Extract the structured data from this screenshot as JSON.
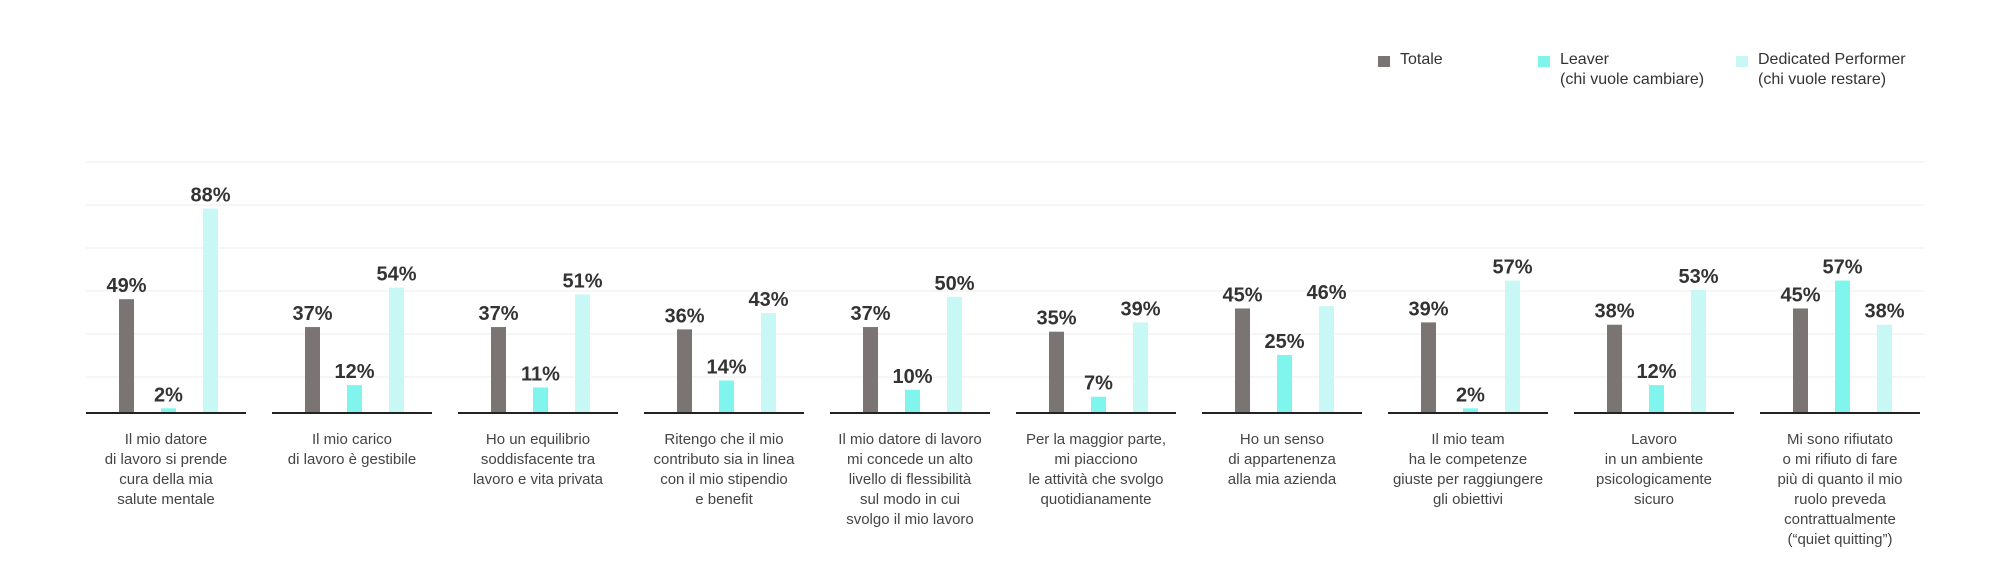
{
  "chart_data": {
    "type": "bar",
    "categories": [
      [
        "Il mio datore",
        "di lavoro si prende",
        "cura della mia",
        "salute mentale"
      ],
      [
        "Il mio carico",
        "di lavoro è gestibile"
      ],
      [
        "Ho un equilibrio",
        "soddisfacente tra",
        "lavoro e vita privata"
      ],
      [
        "Ritengo che il mio",
        "contributo sia in linea",
        "con il mio stipendio",
        "e benefit"
      ],
      [
        "Il mio datore di lavoro",
        "mi concede un alto",
        "livello di flessibilità",
        "sul modo in cui",
        "svolgo il mio lavoro"
      ],
      [
        "Per la maggior parte,",
        "mi piacciono",
        "le attività che svolgo",
        "quotidianamente"
      ],
      [
        "Ho un senso",
        "di appartenenza",
        "alla mia azienda"
      ],
      [
        "Il mio team",
        "ha le competenze",
        "giuste per raggiungere",
        "gli obiettivi"
      ],
      [
        "Lavoro",
        "in un ambiente",
        "psicologicamente",
        "sicuro"
      ],
      [
        "Mi sono rifiutato",
        "o mi rifiuto di fare",
        "più di quanto il mio",
        "ruolo preveda",
        "contrattualmente",
        "(“quiet quitting”)"
      ]
    ],
    "series": [
      {
        "name": [
          "Totale"
        ],
        "color": "#7a7472",
        "values": [
          49,
          37,
          37,
          36,
          37,
          35,
          45,
          39,
          38,
          45
        ]
      },
      {
        "name": [
          "Leaver",
          "(chi vuole cambiare)"
        ],
        "color": "#7ff5ee",
        "values": [
          2,
          12,
          11,
          14,
          10,
          7,
          25,
          2,
          12,
          57
        ]
      },
      {
        "name": [
          "Dedicated Performer",
          "(chi vuole restare)"
        ],
        "color": "#c8f8f5",
        "values": [
          88,
          54,
          51,
          43,
          50,
          39,
          46,
          57,
          53,
          38
        ]
      }
    ],
    "value_suffix": "%",
    "ylim": [
      0,
      90
    ],
    "grid": true,
    "legend_position": "top-right"
  }
}
